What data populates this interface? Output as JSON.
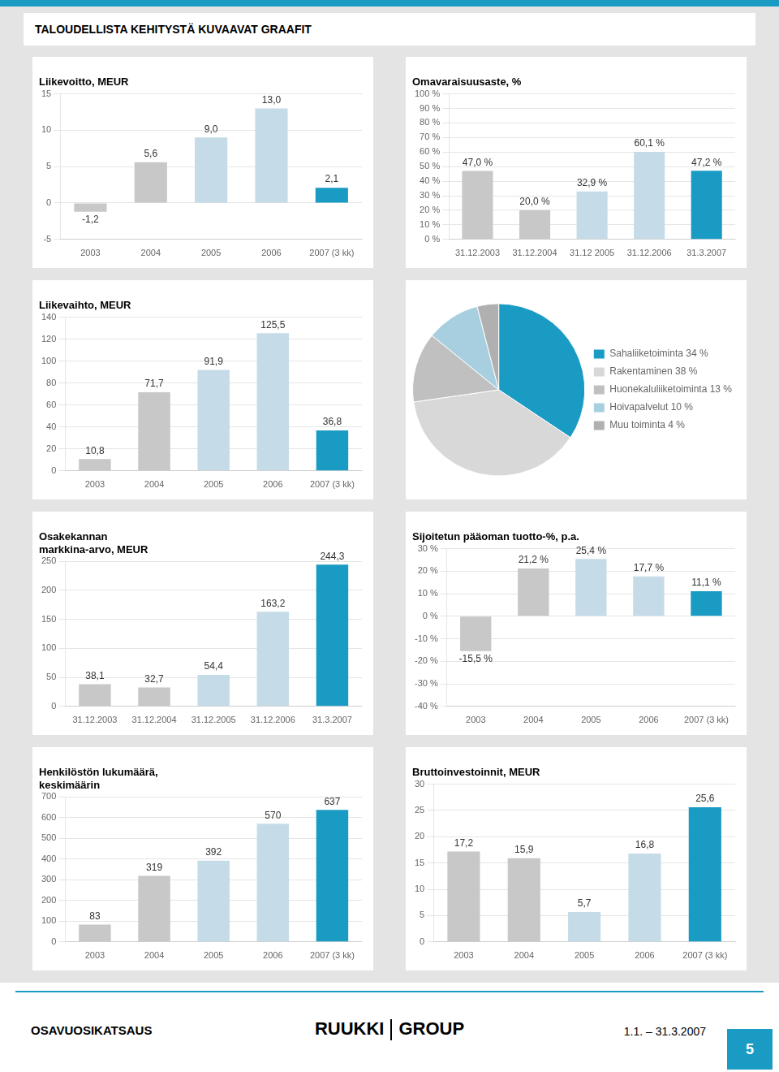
{
  "title": "TALOUDELLISTA KEHITYSTÄ KUVAAVAT GRAAFIT",
  "annotations": [
    "OSAVUOSIKATSAUS",
    "RUUKKI",
    "GROUP",
    "1.1. – 31.3.2007",
    "5"
  ],
  "chart_data": [
    {
      "type": "bar",
      "title": "Liikevoitto, MEUR",
      "categories": [
        "2003",
        "2004",
        "2005",
        "2006",
        "2007 (3 kk)"
      ],
      "values": [
        -1.2,
        5.6,
        9.0,
        13.0,
        2.1
      ],
      "value_labels": [
        "-1,2",
        "5,6",
        "9,0",
        "13,0",
        "2,1"
      ],
      "colors": [
        "#c8c8c8",
        "#c8c8c8",
        "#c5dce8",
        "#c5dce8",
        "#1a9bc4"
      ],
      "ylim": [
        -5,
        15
      ],
      "yticks": [
        -5,
        0,
        5,
        10,
        15
      ],
      "grid": true,
      "data_labels": true
    },
    {
      "type": "bar",
      "title": "Omavaraisuusaste, %",
      "categories": [
        "31.12.2003",
        "31.12.2004",
        "31.12 2005",
        "31.12.2006",
        "31.3.2007"
      ],
      "values": [
        47.0,
        20.0,
        32.9,
        60.1,
        47.2
      ],
      "value_labels": [
        "47,0 %",
        "20,0 %",
        "32,9 %",
        "60,1 %",
        "47,2 %"
      ],
      "colors": [
        "#c8c8c8",
        "#c8c8c8",
        "#c5dce8",
        "#c5dce8",
        "#1a9bc4"
      ],
      "ylim": [
        0,
        100
      ],
      "yticks": [
        {
          "value": 0,
          "label": "0 %"
        },
        {
          "value": 10,
          "label": "10 %"
        },
        {
          "value": 20,
          "label": "20 %"
        },
        {
          "value": 30,
          "label": "30 %"
        },
        {
          "value": 40,
          "label": "40 %"
        },
        {
          "value": 50,
          "label": "50 %"
        },
        {
          "value": 60,
          "label": "60 %"
        },
        {
          "value": 70,
          "label": "70 %"
        },
        {
          "value": 80,
          "label": "80 %"
        },
        {
          "value": 90,
          "label": "90 %"
        },
        {
          "value": 100,
          "label": "100 %"
        }
      ],
      "grid": true,
      "data_labels": true
    },
    {
      "type": "bar",
      "title": "Liikevaihto, MEUR",
      "categories": [
        "2003",
        "2004",
        "2005",
        "2006",
        "2007 (3 kk)"
      ],
      "values": [
        10.8,
        71.7,
        91.9,
        125.5,
        36.8
      ],
      "value_labels": [
        "10,8",
        "71,7",
        "91,9",
        "125,5",
        "36,8"
      ],
      "colors": [
        "#c8c8c8",
        "#c8c8c8",
        "#c5dce8",
        "#c5dce8",
        "#1a9bc4"
      ],
      "ylim": [
        0,
        140
      ],
      "yticks": [
        0,
        20,
        40,
        60,
        80,
        100,
        120,
        140
      ],
      "grid": true,
      "data_labels": true
    },
    {
      "type": "pie",
      "categories": [
        "Sahaliiketoiminta 34 %",
        "Rakentaminen 38 %",
        "Huonekaluliiketoiminta 13 %",
        "Hoivapalvelut 10 %",
        "Muu toiminta 4 %"
      ],
      "values": [
        34,
        38,
        13,
        10,
        4
      ],
      "colors": [
        "#1a9bc4",
        "#d8d8d8",
        "#c0c0c0",
        "#a8cfe0",
        "#b0b0b0"
      ],
      "legend": "right"
    },
    {
      "type": "bar",
      "title": "Osakekannan\nmarkkina-arvo, MEUR",
      "categories": [
        "31.12.2003",
        "31.12.2004",
        "31.12.2005",
        "31.12.2006",
        "31.3.2007"
      ],
      "values": [
        38.1,
        32.7,
        54.4,
        163.2,
        244.3
      ],
      "value_labels": [
        "38,1",
        "32,7",
        "54,4",
        "163,2",
        "244,3"
      ],
      "colors": [
        "#c8c8c8",
        "#c8c8c8",
        "#c5dce8",
        "#c5dce8",
        "#1a9bc4"
      ],
      "ylim": [
        0,
        250
      ],
      "yticks": [
        0,
        50,
        100,
        150,
        200,
        250
      ],
      "grid": true,
      "data_labels": true
    },
    {
      "type": "bar",
      "title": "Sijoitetun pääoman tuotto-%, p.a.",
      "categories": [
        "2003",
        "2004",
        "2005",
        "2006",
        "2007 (3 kk)"
      ],
      "values": [
        -15.5,
        21.2,
        25.4,
        17.7,
        11.1
      ],
      "value_labels": [
        "-15,5 %",
        "21,2 %",
        "25,4 %",
        "17,7 %",
        "11,1 %"
      ],
      "colors": [
        "#c8c8c8",
        "#c8c8c8",
        "#c5dce8",
        "#c5dce8",
        "#1a9bc4"
      ],
      "ylim": [
        -40,
        30
      ],
      "yticks": [
        {
          "value": -40,
          "label": "-40 %"
        },
        {
          "value": -30,
          "label": "-30 %"
        },
        {
          "value": -20,
          "label": "-20 %"
        },
        {
          "value": -10,
          "label": "-10 %"
        },
        {
          "value": 0,
          "label": "0 %"
        },
        {
          "value": 10,
          "label": "10 %"
        },
        {
          "value": 20,
          "label": "20 %"
        },
        {
          "value": 30,
          "label": "30 %"
        }
      ],
      "grid": true,
      "data_labels": true
    },
    {
      "type": "bar",
      "title": "Henkilöstön lukumäärä,\nkeskimäärin",
      "categories": [
        "2003",
        "2004",
        "2005",
        "2006",
        "2007 (3 kk)"
      ],
      "values": [
        83,
        319,
        392,
        570,
        637
      ],
      "colors": [
        "#c8c8c8",
        "#c8c8c8",
        "#c5dce8",
        "#c5dce8",
        "#1a9bc4"
      ],
      "ylim": [
        0,
        700
      ],
      "yticks": [
        0,
        100,
        200,
        300,
        400,
        500,
        600,
        700
      ],
      "grid": true,
      "data_labels": true
    },
    {
      "type": "bar",
      "title": "Bruttoinvestoinnit, MEUR",
      "categories": [
        "2003",
        "2004",
        "2005",
        "2006",
        "2007 (3 kk)"
      ],
      "values": [
        17.2,
        15.9,
        5.7,
        16.8,
        25.6
      ],
      "value_labels": [
        "17,2",
        "15,9",
        "5,7",
        "16,8",
        "25,6"
      ],
      "colors": [
        "#c8c8c8",
        "#c8c8c8",
        "#c5dce8",
        "#c5dce8",
        "#1a9bc4"
      ],
      "ylim": [
        0,
        30
      ],
      "yticks": [
        0,
        5,
        10,
        15,
        20,
        25,
        30
      ],
      "grid": true,
      "data_labels": true
    }
  ]
}
